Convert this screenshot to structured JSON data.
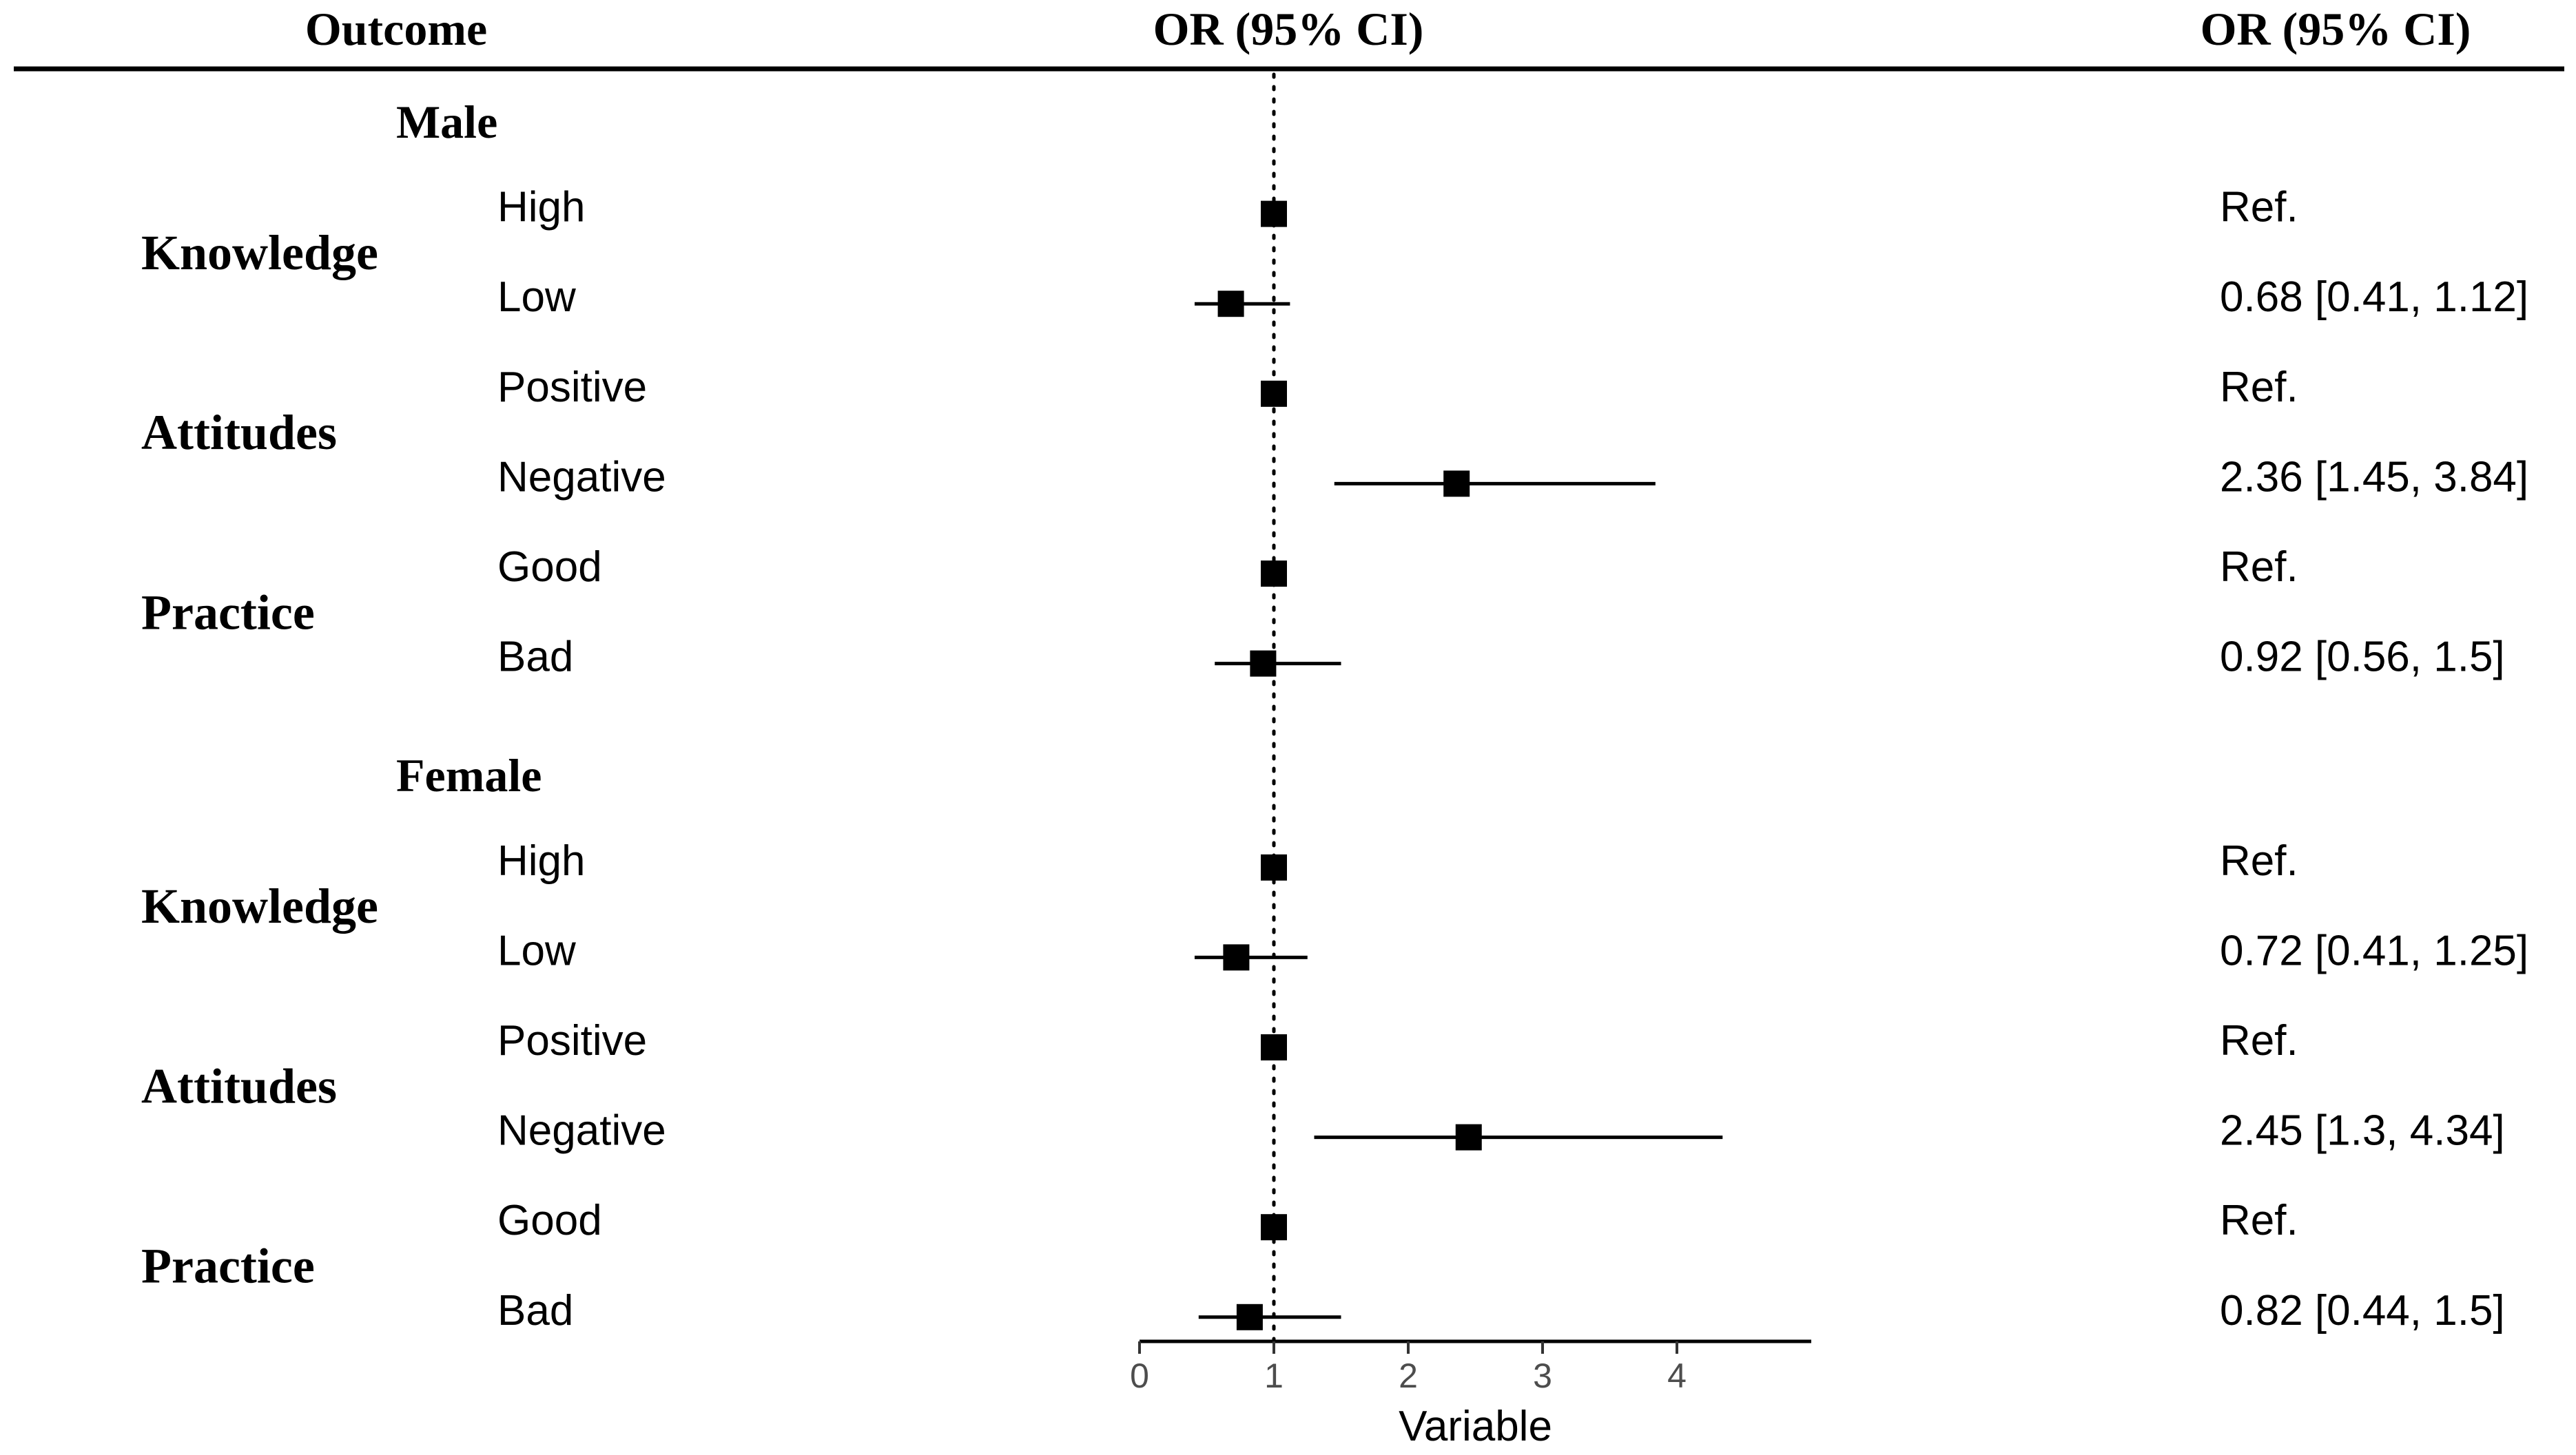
{
  "chart_data": {
    "type": "forest",
    "header": {
      "outcome": "Outcome",
      "plot_title": "OR (95% CI)",
      "value_title": "OR (95% CI)"
    },
    "xlabel": "Variable",
    "xlim": [
      0,
      5
    ],
    "xticks": [
      0,
      1,
      2,
      3,
      4
    ],
    "reference_line": 1,
    "groups": [
      {
        "name": "Male",
        "outcomes": [
          {
            "name": "Knowledge",
            "rows": [
              {
                "level": "High",
                "or": 1,
                "lo": null,
                "hi": null,
                "text": "Ref."
              },
              {
                "level": "Low",
                "or": 0.68,
                "lo": 0.41,
                "hi": 1.12,
                "text": "0.68 [0.41,  1.12]"
              }
            ]
          },
          {
            "name": "Attitudes",
            "rows": [
              {
                "level": "Positive",
                "or": 1,
                "lo": null,
                "hi": null,
                "text": "Ref."
              },
              {
                "level": "Negative",
                "or": 2.36,
                "lo": 1.45,
                "hi": 3.84,
                "text": "2.36 [1.45,  3.84]"
              }
            ]
          },
          {
            "name": "Practice",
            "rows": [
              {
                "level": "Good",
                "or": 1,
                "lo": null,
                "hi": null,
                "text": "Ref."
              },
              {
                "level": "Bad",
                "or": 0.92,
                "lo": 0.56,
                "hi": 1.5,
                "text": "0.92 [0.56,  1.5]"
              }
            ]
          }
        ]
      },
      {
        "name": "Female",
        "outcomes": [
          {
            "name": "Knowledge",
            "rows": [
              {
                "level": "High",
                "or": 1,
                "lo": null,
                "hi": null,
                "text": "Ref."
              },
              {
                "level": "Low",
                "or": 0.72,
                "lo": 0.41,
                "hi": 1.25,
                "text": "0.72 [0.41,  1.25]"
              }
            ]
          },
          {
            "name": "Attitudes",
            "rows": [
              {
                "level": "Positive",
                "or": 1,
                "lo": null,
                "hi": null,
                "text": "Ref."
              },
              {
                "level": "Negative",
                "or": 2.45,
                "lo": 1.3,
                "hi": 4.34,
                "text": "2.45 [1.3,  4.34]"
              }
            ]
          },
          {
            "name": "Practice",
            "rows": [
              {
                "level": "Good",
                "or": 1,
                "lo": null,
                "hi": null,
                "text": "Ref."
              },
              {
                "level": "Bad",
                "or": 0.82,
                "lo": 0.44,
                "hi": 1.5,
                "text": "0.82 [0.44,  1.5]"
              }
            ]
          }
        ]
      }
    ]
  }
}
